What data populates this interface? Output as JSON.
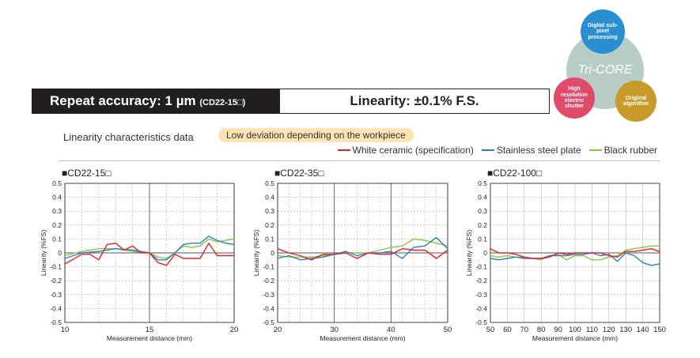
{
  "header": {
    "repeat_label": "Repeat accuracy: 1 µm",
    "repeat_model": "(CD22-15□)",
    "linearity_label": "Linearity: ±0.1% F.S."
  },
  "tricore": {
    "center": "Tri-CORE",
    "top": "Digital sub-pixel processing",
    "left": "High resolution electric shutter",
    "right": "Original algorithm",
    "colors": {
      "top": "#2a8fd0",
      "center": "#b8ccc6",
      "left": "#e04b6a",
      "right": "#c79a2a"
    }
  },
  "section": {
    "title": "Linearity characteristics data",
    "badge": "Low deviation depending on the workpiece"
  },
  "legend": [
    {
      "label": "White ceramic (specification)",
      "color": "#e8202a"
    },
    {
      "label": "Stainless steel plate",
      "color": "#2a7fc4"
    },
    {
      "label": "Black rubber",
      "color": "#8cc63f"
    }
  ],
  "chart_data": [
    {
      "type": "line",
      "title": "■CD22-15□",
      "xlabel": "Measurement distance (mm)",
      "ylabel": "Linearity (%FS)",
      "xlim": [
        10,
        20
      ],
      "ylim": [
        -0.5,
        0.5
      ],
      "xticks": [
        "10",
        "15",
        "20"
      ],
      "yticks": [
        "0.5",
        "0.4",
        "0.3",
        "0.2",
        "0.1",
        "0",
        "-0.1",
        "-0.2",
        "-0.3",
        "-0.4",
        "-0.5"
      ],
      "series": [
        {
          "name": "White ceramic (specification)",
          "color": "#e8202a",
          "x": [
            10,
            11,
            11.5,
            12,
            12.5,
            13,
            13.5,
            14,
            14.5,
            15,
            15.5,
            16,
            16.5,
            17,
            17.5,
            18,
            18.5,
            19,
            19.5,
            20
          ],
          "y": [
            -0.08,
            -0.01,
            -0.01,
            -0.05,
            0.06,
            0.07,
            0.02,
            0.05,
            0.0,
            0.0,
            -0.07,
            -0.09,
            -0.01,
            -0.04,
            -0.04,
            -0.04,
            0.07,
            -0.02,
            -0.02,
            -0.02
          ]
        },
        {
          "name": "Stainless steel plate",
          "color": "#2a7fc4",
          "x": [
            10,
            11,
            12,
            13,
            14,
            15,
            15.5,
            16,
            16.5,
            17,
            17.5,
            18,
            18.5,
            19,
            19.5,
            20
          ],
          "y": [
            -0.04,
            0.0,
            0.01,
            0.03,
            0.02,
            0.0,
            -0.05,
            -0.05,
            0.0,
            0.06,
            0.07,
            0.07,
            0.12,
            0.09,
            0.07,
            0.06
          ]
        },
        {
          "name": "Black rubber",
          "color": "#8cc63f",
          "x": [
            10,
            11,
            12,
            13,
            14,
            15,
            15.5,
            16,
            16.5,
            17,
            17.5,
            18,
            18.5,
            19,
            19.5,
            20
          ],
          "y": [
            -0.02,
            0.01,
            0.03,
            0.03,
            0.01,
            0.0,
            -0.03,
            -0.04,
            0.0,
            0.05,
            0.04,
            0.05,
            0.1,
            0.08,
            0.09,
            0.1
          ]
        }
      ]
    },
    {
      "type": "line",
      "title": "■CD22-35□",
      "xlabel": "Measurement distance (mm)",
      "ylabel": "Linearity (%FS)",
      "xlim": [
        20,
        50
      ],
      "ylim": [
        -0.5,
        0.5
      ],
      "xticks": [
        "20",
        "30",
        "40",
        "50"
      ],
      "yticks": [
        "0.5",
        "0.4",
        "0.3",
        "0.2",
        "0.1",
        "0",
        "-0.1",
        "-0.2",
        "-0.3",
        "-0.4",
        "-0.5"
      ],
      "series": [
        {
          "name": "White ceramic (specification)",
          "color": "#e8202a",
          "x": [
            20,
            22,
            24,
            26,
            28,
            30,
            32,
            34,
            36,
            38,
            40,
            42,
            44,
            46,
            48,
            50
          ],
          "y": [
            0.03,
            0.0,
            -0.02,
            -0.05,
            -0.01,
            -0.01,
            0.0,
            -0.04,
            0.0,
            -0.01,
            -0.01,
            0.03,
            0.02,
            0.02,
            -0.04,
            0.02
          ]
        },
        {
          "name": "Stainless steel plate",
          "color": "#2a7fc4",
          "x": [
            20,
            22,
            24,
            26,
            28,
            30,
            32,
            34,
            36,
            38,
            40,
            42,
            44,
            46,
            48,
            50
          ],
          "y": [
            -0.04,
            -0.02,
            -0.05,
            -0.04,
            -0.03,
            -0.01,
            0.01,
            -0.02,
            0.0,
            0.0,
            0.01,
            -0.04,
            0.04,
            0.05,
            0.11,
            0.03
          ]
        },
        {
          "name": "Black rubber",
          "color": "#8cc63f",
          "x": [
            20,
            22,
            24,
            26,
            28,
            30,
            32,
            34,
            36,
            38,
            40,
            42,
            44,
            46,
            48,
            50
          ],
          "y": [
            -0.02,
            -0.03,
            -0.03,
            -0.03,
            -0.02,
            -0.01,
            0.0,
            0.0,
            0.0,
            0.02,
            0.04,
            0.05,
            0.1,
            0.09,
            0.07,
            0.05
          ]
        }
      ]
    },
    {
      "type": "line",
      "title": "■CD22-100□",
      "xlabel": "Measurement distance (mm)",
      "ylabel": "Linearity (%FS)",
      "xlim": [
        50,
        150
      ],
      "ylim": [
        -0.5,
        0.5
      ],
      "xticks": [
        "50",
        "60",
        "70",
        "80",
        "90",
        "100",
        "110",
        "120",
        "130",
        "140",
        "150"
      ],
      "yticks": [
        "0.5",
        "0.4",
        "0.3",
        "0.2",
        "0.1",
        "0",
        "-0.1",
        "-0.2",
        "-0.3",
        "-0.4",
        "-0.5"
      ],
      "series": [
        {
          "name": "White ceramic (specification)",
          "color": "#e8202a",
          "x": [
            50,
            55,
            60,
            65,
            70,
            75,
            80,
            85,
            90,
            95,
            100,
            105,
            110,
            115,
            120,
            125,
            130,
            135,
            140,
            145,
            150
          ],
          "y": [
            0.03,
            0.0,
            0.0,
            -0.01,
            -0.03,
            -0.04,
            -0.04,
            -0.03,
            0.0,
            -0.01,
            0.0,
            0.0,
            0.0,
            0.0,
            -0.02,
            -0.03,
            0.01,
            0.01,
            0.02,
            0.03,
            0.01
          ]
        },
        {
          "name": "Stainless steel plate",
          "color": "#2a7fc4",
          "x": [
            50,
            55,
            60,
            65,
            70,
            75,
            80,
            85,
            90,
            95,
            100,
            105,
            110,
            115,
            120,
            125,
            130,
            135,
            140,
            145,
            150
          ],
          "y": [
            -0.04,
            -0.05,
            -0.04,
            -0.03,
            -0.04,
            -0.04,
            -0.04,
            -0.02,
            -0.02,
            -0.02,
            -0.01,
            -0.01,
            0.0,
            -0.02,
            -0.01,
            -0.06,
            0.0,
            -0.02,
            -0.07,
            -0.09,
            -0.08
          ]
        },
        {
          "name": "Black rubber",
          "color": "#8cc63f",
          "x": [
            50,
            55,
            60,
            65,
            70,
            75,
            80,
            85,
            90,
            95,
            100,
            105,
            110,
            115,
            120,
            125,
            130,
            135,
            140,
            145,
            150
          ],
          "y": [
            -0.02,
            -0.03,
            -0.02,
            -0.03,
            -0.03,
            -0.04,
            -0.05,
            -0.02,
            -0.01,
            -0.05,
            -0.02,
            -0.02,
            -0.05,
            -0.05,
            -0.03,
            -0.02,
            0.02,
            0.03,
            0.04,
            0.05,
            0.05
          ]
        }
      ]
    }
  ]
}
